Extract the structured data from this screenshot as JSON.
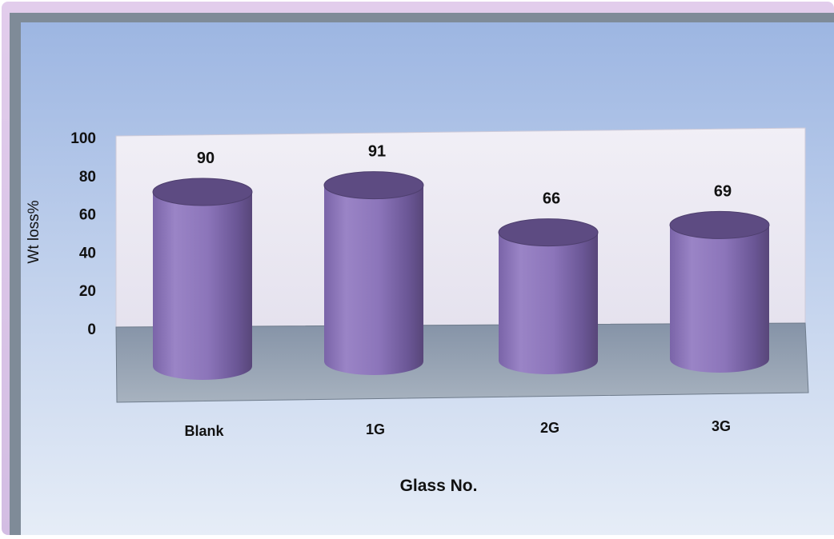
{
  "chart_data": {
    "type": "bar",
    "style": "3d-cylinder",
    "categories": [
      "Blank",
      "1G",
      "2G",
      "3G"
    ],
    "values": [
      90,
      91,
      66,
      69
    ],
    "data_labels": [
      "90",
      "91",
      "66",
      "69"
    ],
    "xlabel": "Glass No.",
    "ylabel": "Wt loss%",
    "yticks": [
      "0",
      "20",
      "40",
      "60",
      "80",
      "100"
    ],
    "ylim": [
      0,
      100
    ],
    "grid": false,
    "legend": "none"
  },
  "colors": {
    "background_top": "#a3bbe4",
    "background_bottom": "#e4ecf6",
    "frame_glow": "#c7a9dc",
    "back_wall": "#ebe8f2",
    "floor": "#95a3b3",
    "bar_body": "#8e77ba",
    "bar_top": "#5c4a80",
    "text": "#111111"
  }
}
